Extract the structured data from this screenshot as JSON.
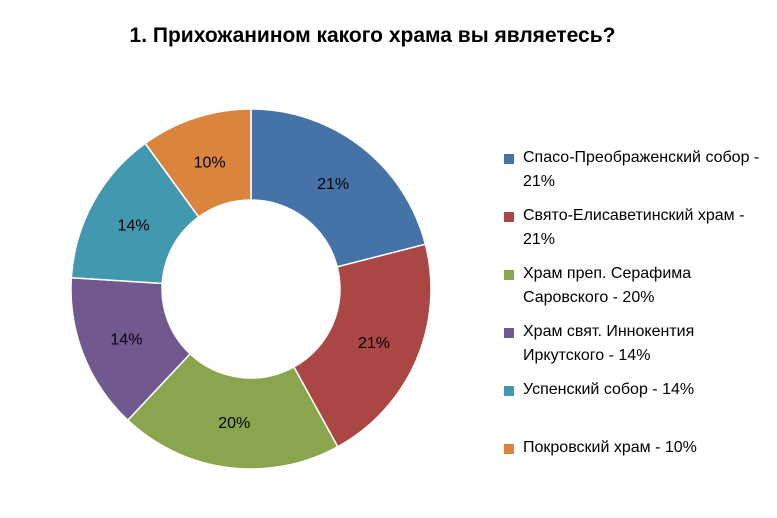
{
  "chart_data": {
    "type": "donut",
    "title": "1. Прихожанином какого храма вы являетесь?",
    "slices": [
      {
        "name": "Спасо-Преображенский собор",
        "value": 21,
        "label": "21%",
        "legend": "Спасо-Преображенский собор - 21%",
        "color": "#4572A7"
      },
      {
        "name": "Свято-Елисаветинский храм",
        "value": 21,
        "label": "21%",
        "legend": "Свято-Елисаветинский храм - 21%",
        "color": "#AA4643"
      },
      {
        "name": "Храм преп. Серафима Саровского",
        "value": 20,
        "label": "20%",
        "legend": "Храм преп. Серафима Саровского - 20%",
        "color": "#89A54E"
      },
      {
        "name": "Храм свят. Иннокентия Иркутского",
        "value": 14,
        "label": "14%",
        "legend": "Храм свят. Иннокентия Иркутского - 14%",
        "color": "#71588F"
      },
      {
        "name": "Успенский собор",
        "value": 14,
        "label": "14%",
        "legend": "Успенский собор - 14%",
        "color": "#4198AF"
      },
      {
        "name": "Покровский храм",
        "value": 10,
        "label": "10%",
        "legend": "Покровский храм - 10%",
        "color": "#DB843D"
      }
    ],
    "legend_position": "right"
  }
}
